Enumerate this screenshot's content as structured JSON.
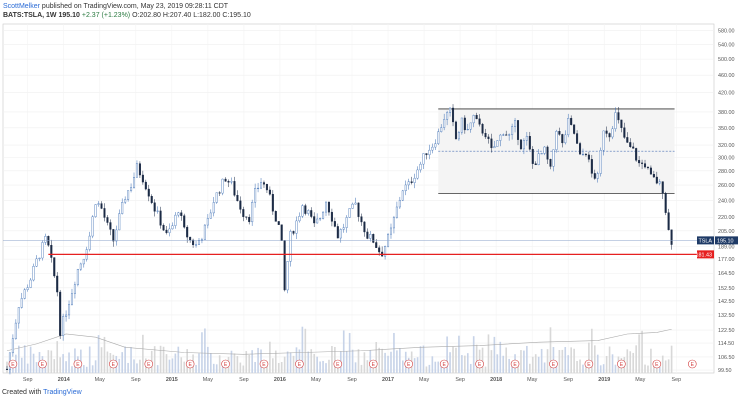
{
  "header": {
    "author": "ScottMelker",
    "published": "published on TradingView.com, May 23, 2019 09:28:11 CDT",
    "symbol": "BATS:TSLA, 1W",
    "last": "195.10",
    "change": "+2.37 (+1.23%)",
    "ohlc": "O:202.80 H:207.40 L:182.00 C:195.10"
  },
  "footer": {
    "created_with": "Created with",
    "brand": "TradingView"
  },
  "chart_data": {
    "type": "candlestick",
    "symbol": "TSLA",
    "interval": "1W",
    "y_scale": "log",
    "ylim": [
      98,
      600
    ],
    "y_ticks": [
      99.5,
      106.5,
      114.5,
      122.5,
      132.5,
      142.5,
      152.5,
      164.5,
      177.0,
      189.0,
      205.0,
      220.0,
      240.0,
      260.0,
      280.0,
      300.0,
      320.0,
      350.0,
      380.0,
      420.0,
      460.0,
      500.0,
      540.0,
      580.0
    ],
    "x_ticks": [
      "Sep",
      "2014",
      "May",
      "Sep",
      "2015",
      "May",
      "Sep",
      "2016",
      "May",
      "Sep",
      "2017",
      "May",
      "Sep",
      "2018",
      "May",
      "Sep",
      "2019",
      "May",
      "Sep"
    ],
    "x_tick_bold": [
      false,
      true,
      false,
      false,
      true,
      false,
      false,
      true,
      false,
      false,
      true,
      false,
      false,
      true,
      false,
      false,
      true,
      false,
      false
    ],
    "last_price": {
      "label": "TSLA",
      "value": 195.1,
      "color": "#1e3a66"
    },
    "support_level": {
      "value": 181.43,
      "color": "#e62020"
    },
    "price_path": [
      [
        0,
        100
      ],
      [
        4,
        140
      ],
      [
        8,
        160
      ],
      [
        10,
        175
      ],
      [
        13,
        196
      ],
      [
        14,
        188
      ],
      [
        17,
        150
      ],
      [
        18,
        122
      ],
      [
        20,
        135
      ],
      [
        22,
        150
      ],
      [
        24,
        168
      ],
      [
        26,
        180
      ],
      [
        28,
        200
      ],
      [
        30,
        240
      ],
      [
        32,
        230
      ],
      [
        34,
        210
      ],
      [
        36,
        195
      ],
      [
        38,
        220
      ],
      [
        40,
        245
      ],
      [
        42,
        260
      ],
      [
        44,
        285
      ],
      [
        46,
        270
      ],
      [
        48,
        250
      ],
      [
        50,
        230
      ],
      [
        52,
        215
      ],
      [
        54,
        200
      ],
      [
        56,
        210
      ],
      [
        58,
        230
      ],
      [
        60,
        205
      ],
      [
        62,
        195
      ],
      [
        64,
        190
      ],
      [
        66,
        200
      ],
      [
        68,
        215
      ],
      [
        70,
        240
      ],
      [
        72,
        255
      ],
      [
        74,
        270
      ],
      [
        76,
        260
      ],
      [
        78,
        240
      ],
      [
        80,
        225
      ],
      [
        82,
        220
      ],
      [
        84,
        250
      ],
      [
        86,
        265
      ],
      [
        88,
        255
      ],
      [
        90,
        230
      ],
      [
        92,
        210
      ],
      [
        93,
        190
      ],
      [
        94,
        150
      ],
      [
        95,
        175
      ],
      [
        96,
        200
      ],
      [
        98,
        215
      ],
      [
        100,
        235
      ],
      [
        102,
        225
      ],
      [
        104,
        210
      ],
      [
        106,
        220
      ],
      [
        108,
        240
      ],
      [
        110,
        220
      ],
      [
        112,
        200
      ],
      [
        114,
        210
      ],
      [
        116,
        225
      ],
      [
        118,
        235
      ],
      [
        120,
        215
      ],
      [
        122,
        200
      ],
      [
        124,
        195
      ],
      [
        126,
        185
      ],
      [
        127,
        183
      ],
      [
        128,
        190
      ],
      [
        130,
        205
      ],
      [
        132,
        230
      ],
      [
        134,
        255
      ],
      [
        136,
        260
      ],
      [
        138,
        275
      ],
      [
        140,
        290
      ],
      [
        142,
        310
      ],
      [
        144,
        320
      ],
      [
        146,
        340
      ],
      [
        148,
        370
      ],
      [
        150,
        380
      ],
      [
        152,
        330
      ],
      [
        154,
        360
      ],
      [
        156,
        345
      ],
      [
        158,
        370
      ],
      [
        160,
        350
      ],
      [
        162,
        340
      ],
      [
        164,
        310
      ],
      [
        166,
        325
      ],
      [
        168,
        345
      ],
      [
        170,
        335
      ],
      [
        172,
        355
      ],
      [
        174,
        320
      ],
      [
        176,
        330
      ],
      [
        178,
        290
      ],
      [
        180,
        300
      ],
      [
        182,
        310
      ],
      [
        184,
        280
      ],
      [
        186,
        350
      ],
      [
        188,
        320
      ],
      [
        190,
        360
      ],
      [
        192,
        340
      ],
      [
        194,
        300
      ],
      [
        196,
        310
      ],
      [
        198,
        275
      ],
      [
        200,
        270
      ],
      [
        202,
        350
      ],
      [
        204,
        340
      ],
      [
        206,
        375
      ],
      [
        208,
        345
      ],
      [
        210,
        320
      ],
      [
        212,
        310
      ],
      [
        214,
        290
      ],
      [
        216,
        290
      ],
      [
        218,
        270
      ],
      [
        220,
        265
      ],
      [
        222,
        255
      ],
      [
        224,
        205
      ],
      [
        225,
        195
      ]
    ],
    "volume_avg_path": [
      [
        0,
        110
      ],
      [
        10,
        114
      ],
      [
        20,
        120
      ],
      [
        30,
        118
      ],
      [
        40,
        112
      ],
      [
        60,
        109
      ],
      [
        80,
        108
      ],
      [
        100,
        109
      ],
      [
        120,
        110
      ],
      [
        140,
        112
      ],
      [
        160,
        113
      ],
      [
        180,
        115
      ],
      [
        200,
        116
      ],
      [
        210,
        120
      ],
      [
        220,
        121
      ],
      [
        225,
        123
      ]
    ],
    "range_box": {
      "top": 386,
      "bottom": 249,
      "mid": 310,
      "from_week": 146,
      "to_week": 226
    },
    "earnings_markers": {
      "label": "E",
      "weeks": [
        2,
        12,
        24,
        36,
        48,
        62,
        74,
        87,
        99,
        112,
        124,
        136,
        148,
        160,
        172,
        185,
        197,
        208,
        220,
        232
      ]
    }
  }
}
